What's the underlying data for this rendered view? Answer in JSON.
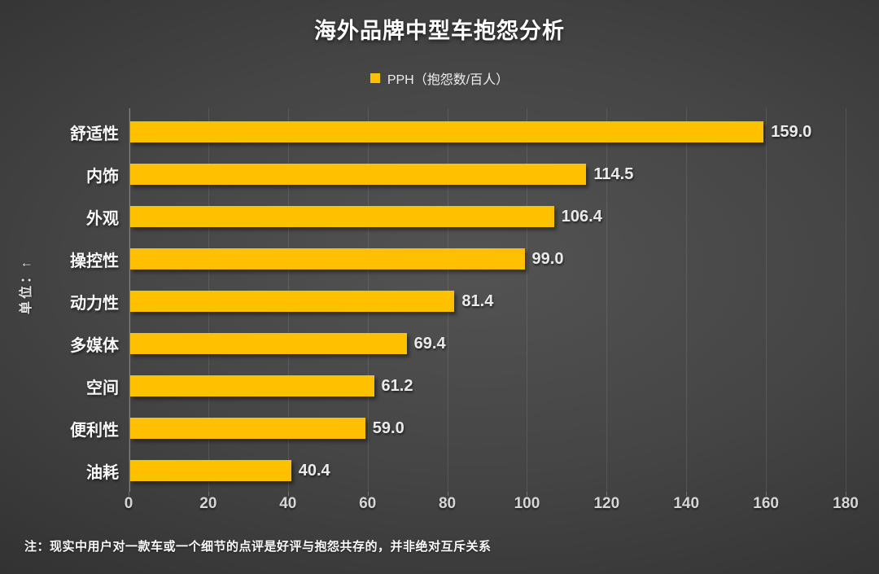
{
  "title": "海外品牌中型车抱怨分析",
  "legend": {
    "swatch_color": "#FFC000",
    "label": "PPH（抱怨数/百人）"
  },
  "y_axis_title": "单位：↑",
  "footnote": "注：现实中用户对一款车或一个细节的点评是好评与抱怨共存的，并非绝对互斥关系",
  "chart_data": {
    "type": "bar",
    "orientation": "horizontal",
    "title": "海外品牌中型车抱怨分析",
    "series_name": "PPH（抱怨数/百人）",
    "categories": [
      "舒适性",
      "内饰",
      "外观",
      "操控性",
      "动力性",
      "多媒体",
      "空间",
      "便利性",
      "油耗"
    ],
    "values": [
      159.0,
      114.5,
      106.4,
      99.0,
      81.4,
      69.4,
      61.2,
      59.0,
      40.4
    ],
    "value_labels": [
      "159.0",
      "114.5",
      "106.4",
      "99.0",
      "81.4",
      "69.4",
      "61.2",
      "59.0",
      "40.4"
    ],
    "x_ticks": [
      "0",
      "20",
      "40",
      "60",
      "80",
      "100",
      "120",
      "140",
      "160",
      "180"
    ],
    "xlim": [
      0,
      180
    ],
    "grid": true,
    "legend_position": "top-center",
    "bar_color": "#FFC000",
    "background": "dark-gray-radial-gradient",
    "annotation": "注：现实中用户对一款车或一个细节的点评是好评与抱怨共存的，并非绝对互斥关系"
  }
}
